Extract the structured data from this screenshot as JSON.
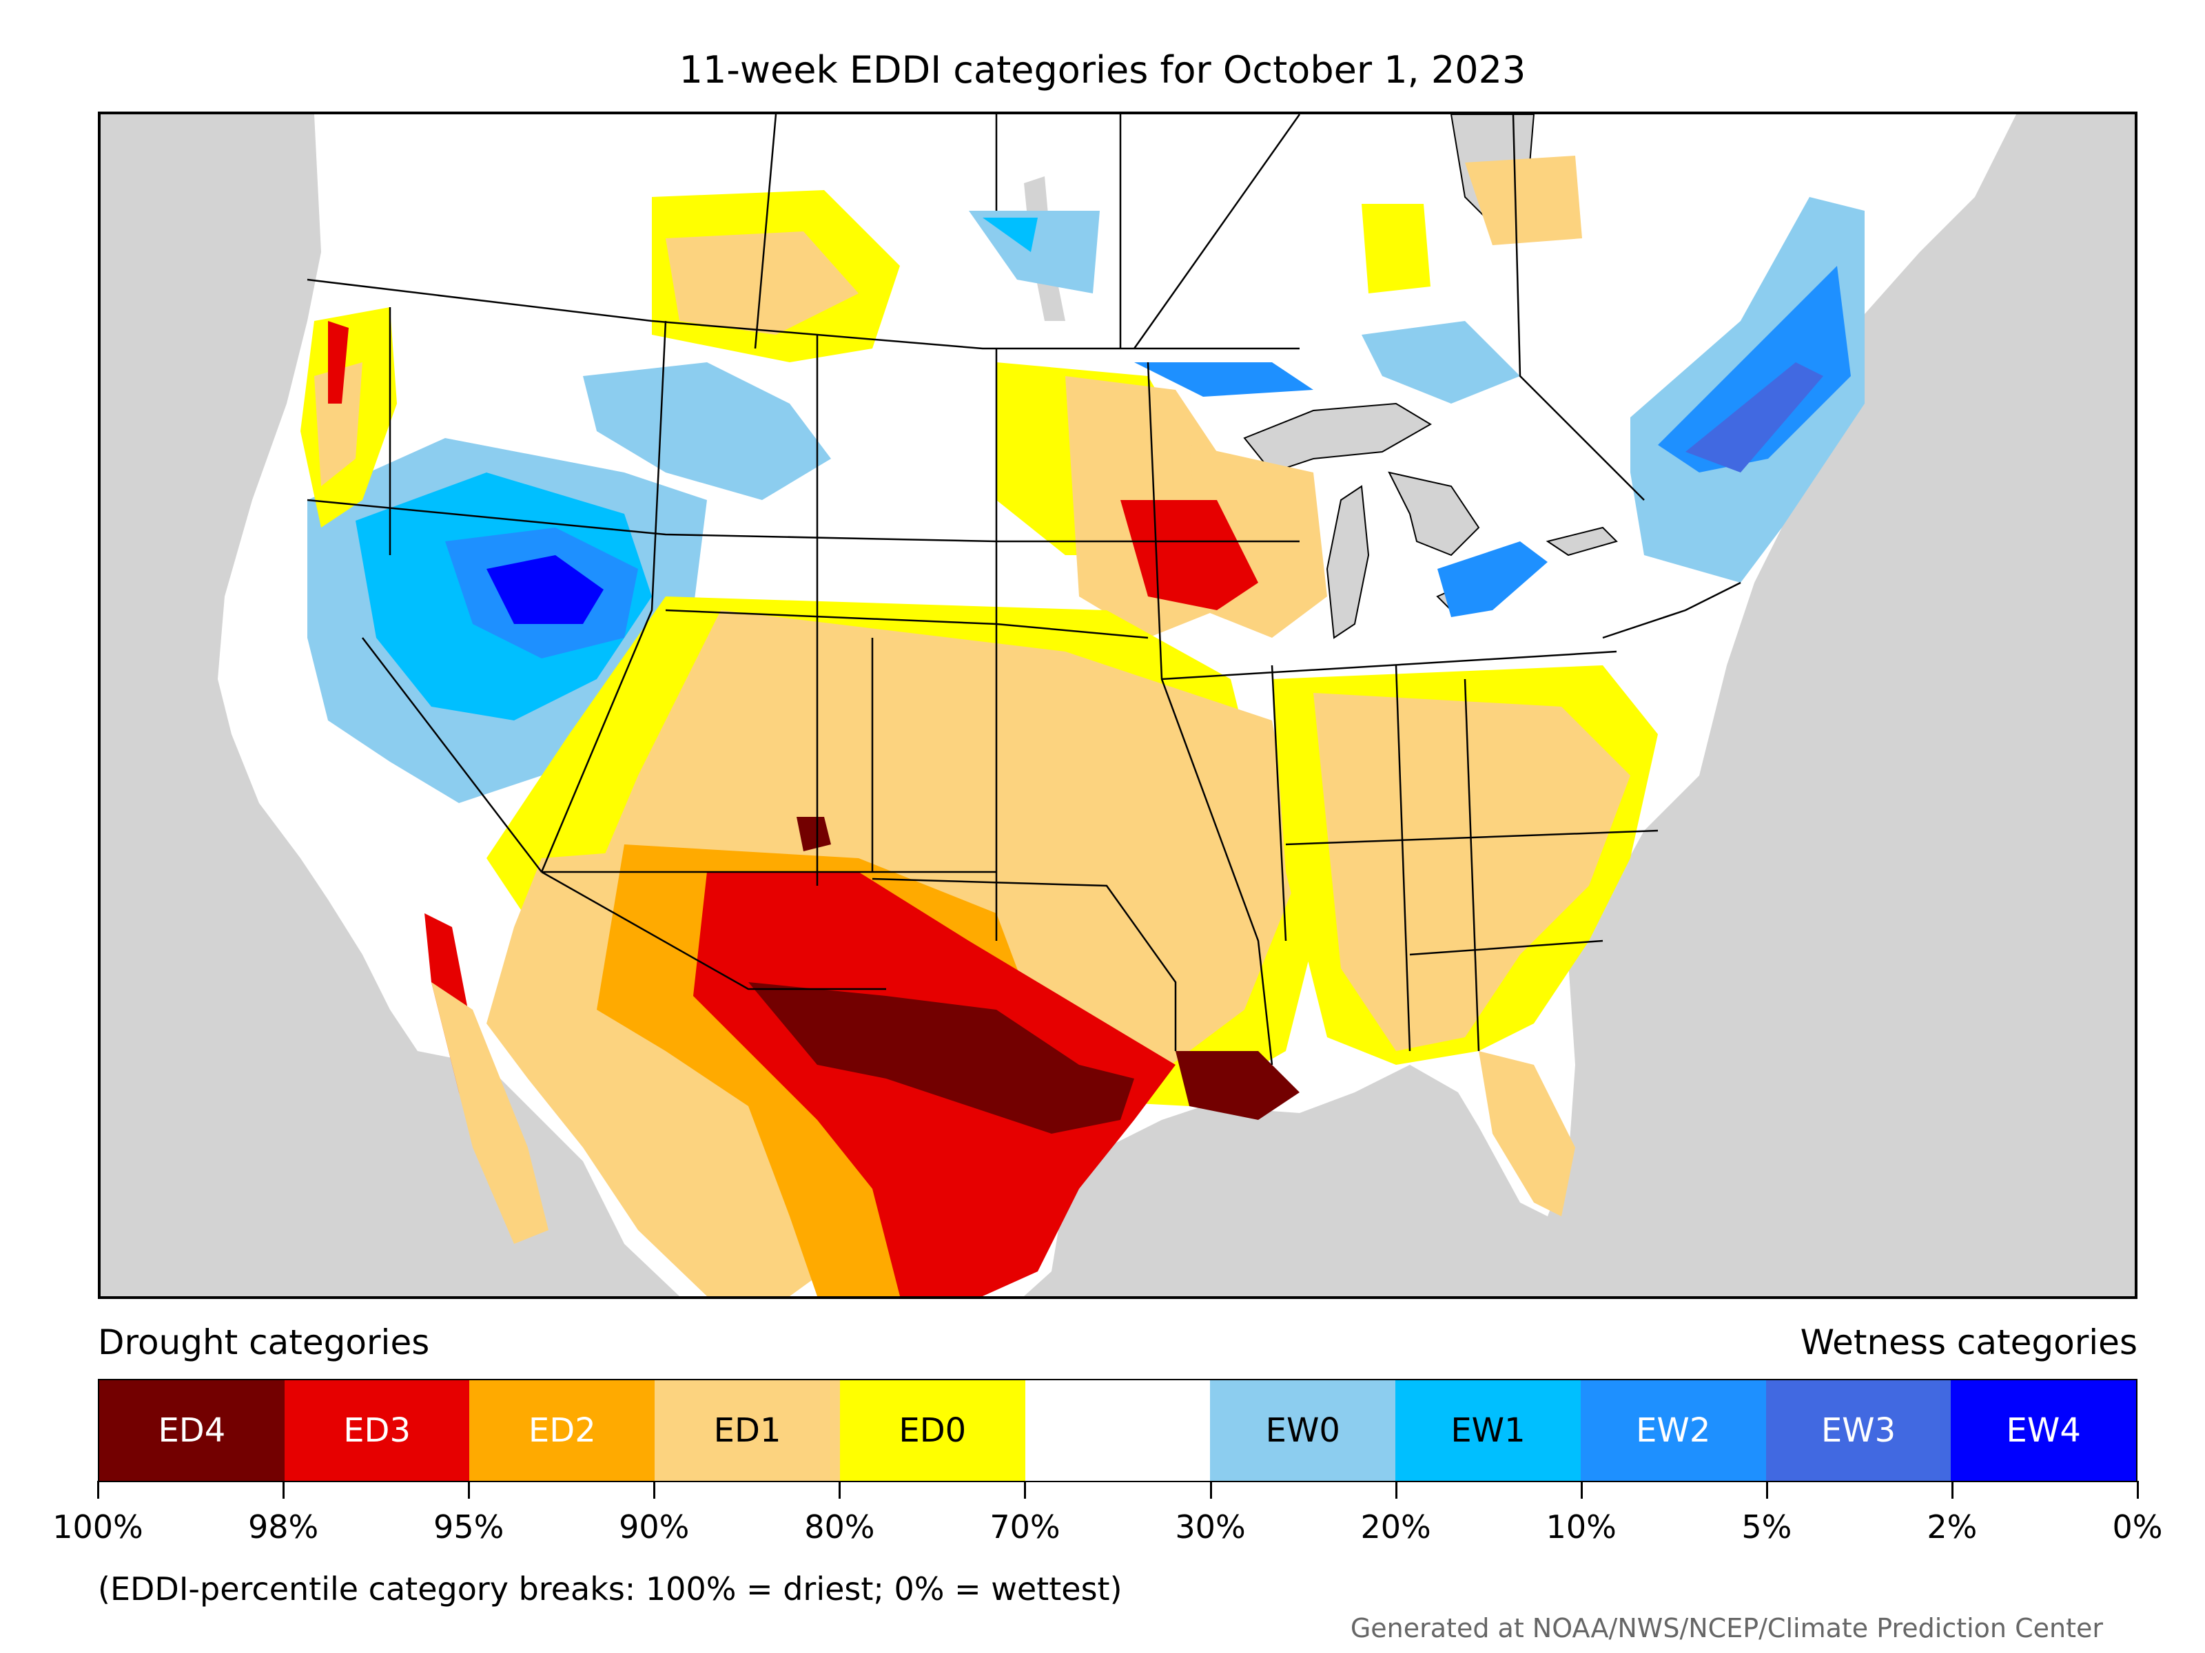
{
  "title": "11-week EDDI categories for October 1, 2023",
  "legend": {
    "left_label": "Drought categories",
    "right_label": "Wetness categories",
    "categories": [
      {
        "label": "ED4",
        "color": "#730000",
        "text_color": "#ffffff"
      },
      {
        "label": "ED3",
        "color": "#e60000",
        "text_color": "#ffffff"
      },
      {
        "label": "ED2",
        "color": "#ffaa00",
        "text_color": "#ffffff"
      },
      {
        "label": "ED1",
        "color": "#fcd37f",
        "text_color": "#000000"
      },
      {
        "label": "ED0",
        "color": "#ffff00",
        "text_color": "#000000"
      },
      {
        "label": "",
        "color": "#ffffff",
        "text_color": "#000000"
      },
      {
        "label": "EW0",
        "color": "#8ccdef",
        "text_color": "#000000"
      },
      {
        "label": "EW1",
        "color": "#00bfff",
        "text_color": "#000000"
      },
      {
        "label": "EW2",
        "color": "#1e90ff",
        "text_color": "#ffffff"
      },
      {
        "label": "EW3",
        "color": "#4169e1",
        "text_color": "#ffffff"
      },
      {
        "label": "EW4",
        "color": "#0000ff",
        "text_color": "#ffffff"
      }
    ],
    "tick_labels": [
      "100%",
      "98%",
      "95%",
      "90%",
      "80%",
      "70%",
      "30%",
      "20%",
      "10%",
      "5%",
      "2%",
      "0%"
    ]
  },
  "note": "(EDDI-percentile category breaks: 100% = driest; 0% = wettest)",
  "credit": "Generated at NOAA/NWS/NCEP/Climate Prediction Center",
  "map": {
    "background_color": "#d3d3d3",
    "land_color": "#ffffff",
    "water_color": "#d3d3d3"
  }
}
